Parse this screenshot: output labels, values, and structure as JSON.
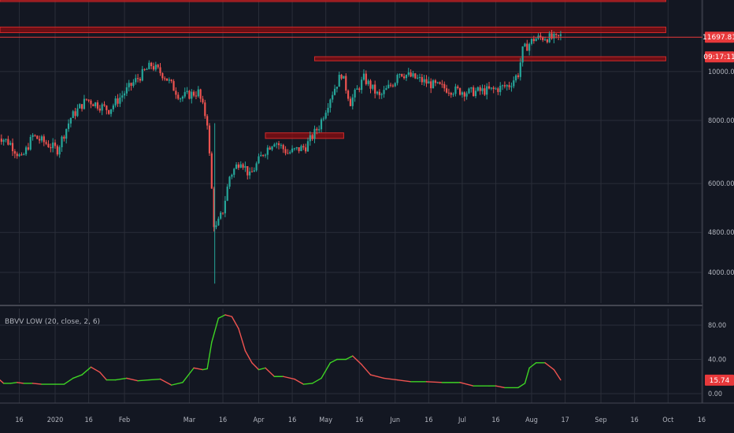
{
  "colors": {
    "background": "#131722",
    "grid": "#2a2e39",
    "up_candle": "#26a69a",
    "down_candle": "#ef5350",
    "zone_fill": "#8b0e12",
    "zone_stroke": "#d02a2a",
    "price_tag": "#e8393b",
    "indicator_up": "#3ed424",
    "indicator_down": "#ef5350"
  },
  "chart_data": [
    {
      "type": "candlestick",
      "price_scale": "log",
      "ylim": [
        3500,
        16000
      ],
      "y_ticks": [
        {
          "value": 4000,
          "label": "4000.00"
        },
        {
          "value": 4800,
          "label": "4800.00"
        },
        {
          "value": 6000,
          "label": "6000.00"
        },
        {
          "value": 8000,
          "label": "8000.00"
        },
        {
          "value": 10000,
          "label": "10000.00"
        }
      ],
      "x_ticks": [
        {
          "date": "2019-12-16",
          "label": "16"
        },
        {
          "date": "2020-01-01",
          "label": "2020"
        },
        {
          "date": "2020-01-16",
          "label": "16"
        },
        {
          "date": "2020-02-01",
          "label": "Feb"
        },
        {
          "date": "2020-03-01",
          "label": "Mar"
        },
        {
          "date": "2020-03-16",
          "label": "16"
        },
        {
          "date": "2020-04-01",
          "label": "Apr"
        },
        {
          "date": "2020-04-16",
          "label": "16"
        },
        {
          "date": "2020-05-01",
          "label": "May"
        },
        {
          "date": "2020-05-16",
          "label": "16"
        },
        {
          "date": "2020-06-01",
          "label": "Jun"
        },
        {
          "date": "2020-06-16",
          "label": "16"
        },
        {
          "date": "2020-07-01",
          "label": "Jul"
        },
        {
          "date": "2020-07-16",
          "label": "16"
        },
        {
          "date": "2020-08-01",
          "label": "Aug"
        },
        {
          "date": "2020-08-16",
          "label": "17"
        },
        {
          "date": "2020-09-01",
          "label": "Sep"
        },
        {
          "date": "2020-09-16",
          "label": "16"
        },
        {
          "date": "2020-10-01",
          "label": "Oct"
        },
        {
          "date": "2020-10-16",
          "label": "16"
        }
      ],
      "price_path": [
        [
          "2019-12-06",
          7500
        ],
        [
          "2019-12-12",
          7200
        ],
        [
          "2019-12-17",
          6700
        ],
        [
          "2019-12-22",
          7450
        ],
        [
          "2019-12-27",
          7250
        ],
        [
          "2020-01-02",
          7000
        ],
        [
          "2020-01-08",
          8100
        ],
        [
          "2020-01-15",
          8800
        ],
        [
          "2020-01-25",
          8400
        ],
        [
          "2020-02-05",
          9500
        ],
        [
          "2020-02-13",
          10300
        ],
        [
          "2020-02-19",
          9800
        ],
        [
          "2020-02-26",
          8900
        ],
        [
          "2020-03-05",
          9100
        ],
        [
          "2020-03-09",
          7950
        ],
        [
          "2020-03-12",
          5000
        ],
        [
          "2020-03-13",
          4900
        ],
        [
          "2020-03-16",
          5300
        ],
        [
          "2020-03-19",
          6200
        ],
        [
          "2020-03-24",
          6700
        ],
        [
          "2020-03-28",
          6200
        ],
        [
          "2020-04-03",
          6900
        ],
        [
          "2020-04-08",
          7300
        ],
        [
          "2020-04-14",
          6900
        ],
        [
          "2020-04-22",
          7100
        ],
        [
          "2020-04-28",
          7800
        ],
        [
          "2020-05-03",
          8900
        ],
        [
          "2020-05-08",
          9900
        ],
        [
          "2020-05-12",
          8700
        ],
        [
          "2020-05-18",
          9700
        ],
        [
          "2020-05-25",
          8900
        ],
        [
          "2020-06-01",
          9600
        ],
        [
          "2020-06-02",
          10000
        ],
        [
          "2020-06-10",
          9700
        ],
        [
          "2020-06-18",
          9400
        ],
        [
          "2020-06-26",
          9200
        ],
        [
          "2020-07-04",
          9100
        ],
        [
          "2020-07-15",
          9200
        ],
        [
          "2020-07-22",
          9400
        ],
        [
          "2020-07-26",
          9900
        ],
        [
          "2020-07-28",
          11000
        ],
        [
          "2020-08-02",
          11600
        ],
        [
          "2020-08-07",
          11700
        ],
        [
          "2020-08-12",
          11600
        ],
        [
          "2020-08-14",
          11750
        ]
      ],
      "zones": [
        {
          "low": 14400,
          "high": 16000,
          "from": "2019-12-06",
          "to": "2020-09-30"
        },
        {
          "low": 11940,
          "high": 12250,
          "from": "2019-12-06",
          "to": "2020-09-30"
        },
        {
          "low": 10500,
          "high": 10700,
          "from": "2020-04-26",
          "to": "2020-09-30"
        },
        {
          "low": 7370,
          "high": 7560,
          "from": "2020-04-04",
          "to": "2020-05-09"
        }
      ],
      "price_line": 11697.81,
      "last_price_label": "11697.81",
      "countdown_label": "09:17:11"
    },
    {
      "type": "line",
      "name": "BBVV LOW (20, close, 2, 6)",
      "ylim": [
        -4,
        105
      ],
      "y_ticks": [
        {
          "value": 0,
          "label": "0.00"
        },
        {
          "value": 40,
          "label": "40.00"
        },
        {
          "value": 80,
          "label": "80.00"
        }
      ],
      "last_value": 15.74,
      "last_value_label": "15.74",
      "values": [
        [
          "2019-12-06",
          19
        ],
        [
          "2019-12-09",
          12
        ],
        [
          "2019-12-12",
          12
        ],
        [
          "2019-12-15",
          13
        ],
        [
          "2019-12-18",
          12
        ],
        [
          "2019-12-22",
          12
        ],
        [
          "2019-12-26",
          11
        ],
        [
          "2020-01-01",
          11
        ],
        [
          "2020-01-05",
          11
        ],
        [
          "2020-01-09",
          18
        ],
        [
          "2020-01-13",
          22
        ],
        [
          "2020-01-17",
          31
        ],
        [
          "2020-01-21",
          25
        ],
        [
          "2020-01-24",
          16
        ],
        [
          "2020-01-28",
          16
        ],
        [
          "2020-02-02",
          18
        ],
        [
          "2020-02-07",
          15
        ],
        [
          "2020-02-12",
          16
        ],
        [
          "2020-02-17",
          17
        ],
        [
          "2020-02-22",
          10
        ],
        [
          "2020-02-27",
          13
        ],
        [
          "2020-03-03",
          30
        ],
        [
          "2020-03-07",
          28
        ],
        [
          "2020-03-09",
          29
        ],
        [
          "2020-03-11",
          60
        ],
        [
          "2020-03-14",
          88
        ],
        [
          "2020-03-17",
          92
        ],
        [
          "2020-03-20",
          90
        ],
        [
          "2020-03-23",
          76
        ],
        [
          "2020-03-26",
          50
        ],
        [
          "2020-03-29",
          36
        ],
        [
          "2020-04-01",
          28
        ],
        [
          "2020-04-04",
          30
        ],
        [
          "2020-04-08",
          20
        ],
        [
          "2020-04-12",
          20
        ],
        [
          "2020-04-17",
          17
        ],
        [
          "2020-04-21",
          11
        ],
        [
          "2020-04-25",
          12
        ],
        [
          "2020-04-29",
          18
        ],
        [
          "2020-05-03",
          36
        ],
        [
          "2020-05-06",
          40
        ],
        [
          "2020-05-10",
          40
        ],
        [
          "2020-05-13",
          44
        ],
        [
          "2020-05-17",
          34
        ],
        [
          "2020-05-21",
          22
        ],
        [
          "2020-05-27",
          18
        ],
        [
          "2020-06-02",
          16
        ],
        [
          "2020-06-08",
          14
        ],
        [
          "2020-06-15",
          14
        ],
        [
          "2020-06-22",
          13
        ],
        [
          "2020-06-30",
          13
        ],
        [
          "2020-07-06",
          9
        ],
        [
          "2020-07-13",
          9
        ],
        [
          "2020-07-16",
          9
        ],
        [
          "2020-07-20",
          7
        ],
        [
          "2020-07-26",
          7
        ],
        [
          "2020-07-29",
          12
        ],
        [
          "2020-07-31",
          30
        ],
        [
          "2020-08-03",
          36
        ],
        [
          "2020-08-07",
          36
        ],
        [
          "2020-08-11",
          28
        ],
        [
          "2020-08-14",
          16
        ]
      ]
    }
  ]
}
